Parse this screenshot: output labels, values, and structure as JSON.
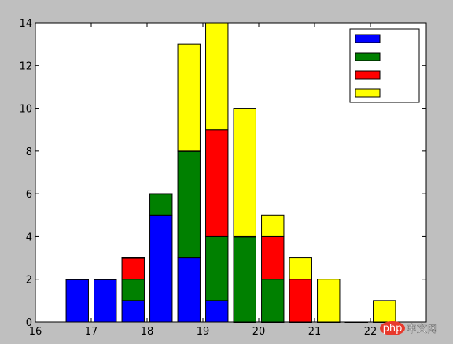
{
  "chart_data": {
    "type": "bar",
    "stacked": true,
    "x": [
      16.75,
      17.25,
      17.75,
      18.25,
      18.75,
      19.25,
      19.75,
      20.25,
      20.75,
      21.25,
      21.75,
      22.25
    ],
    "series": [
      {
        "color": "#0000ff",
        "values": [
          2,
          2,
          1,
          5,
          3,
          1,
          0,
          0,
          0,
          0,
          0,
          0
        ]
      },
      {
        "color": "#008000",
        "values": [
          0,
          0,
          1,
          1,
          5,
          3,
          4,
          2,
          0,
          0,
          0,
          0
        ]
      },
      {
        "color": "#ff0000",
        "values": [
          0,
          0,
          1,
          0,
          0,
          5,
          0,
          2,
          2,
          0,
          0,
          0
        ]
      },
      {
        "color": "#ffff00",
        "values": [
          0,
          0,
          0,
          0,
          5,
          5,
          6,
          1,
          1,
          2,
          0,
          1
        ]
      }
    ],
    "xlim": [
      16,
      23
    ],
    "ylim": [
      0,
      14
    ],
    "xticks": [
      16,
      17,
      18,
      19,
      20,
      21,
      22
    ],
    "yticks": [
      0,
      2,
      4,
      6,
      8,
      10,
      12,
      14
    ],
    "xtick_labels": [
      "16",
      "17",
      "18",
      "19",
      "20",
      "21",
      "22"
    ],
    "ytick_labels": [
      "0",
      "2",
      "4",
      "6",
      "8",
      "10",
      "12",
      "14"
    ],
    "bar_width": 0.4,
    "grid": false,
    "legend": {
      "position": "top-right",
      "entries": [
        "",
        "",
        "",
        ""
      ]
    },
    "title": "",
    "xlabel": "",
    "ylabel": ""
  },
  "watermark": {
    "badge": "php",
    "text": "中文网"
  }
}
